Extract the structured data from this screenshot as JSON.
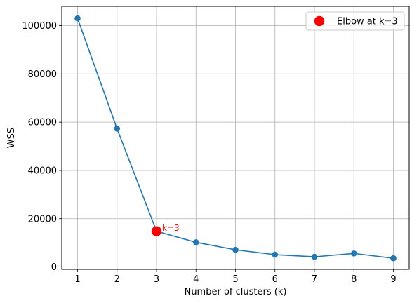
{
  "chart_data": {
    "type": "line",
    "title": "",
    "xlabel": "Number of clusters (k)",
    "ylabel": "WSS",
    "xlim": [
      0.6,
      9.4
    ],
    "ylim": [
      -1000,
      108000
    ],
    "x": [
      1,
      2,
      3,
      4,
      5,
      6,
      7,
      8,
      9
    ],
    "xticks": [
      1,
      2,
      3,
      4,
      5,
      6,
      7,
      8,
      9
    ],
    "yticks": [
      0,
      20000,
      40000,
      60000,
      80000,
      100000
    ],
    "series": [
      {
        "name": "",
        "color": "#1f77b4",
        "values": [
          103000,
          57300,
          14800,
          10200,
          7100,
          5100,
          4200,
          5600,
          3600
        ]
      }
    ],
    "highlight": {
      "name": "Elbow at k=3",
      "x": 3,
      "y": 14800,
      "color": "#ff0000",
      "annotation": "k=3"
    },
    "legend": {
      "placement": "top-right",
      "entries": [
        "Elbow at k=3"
      ]
    },
    "grid": true
  }
}
